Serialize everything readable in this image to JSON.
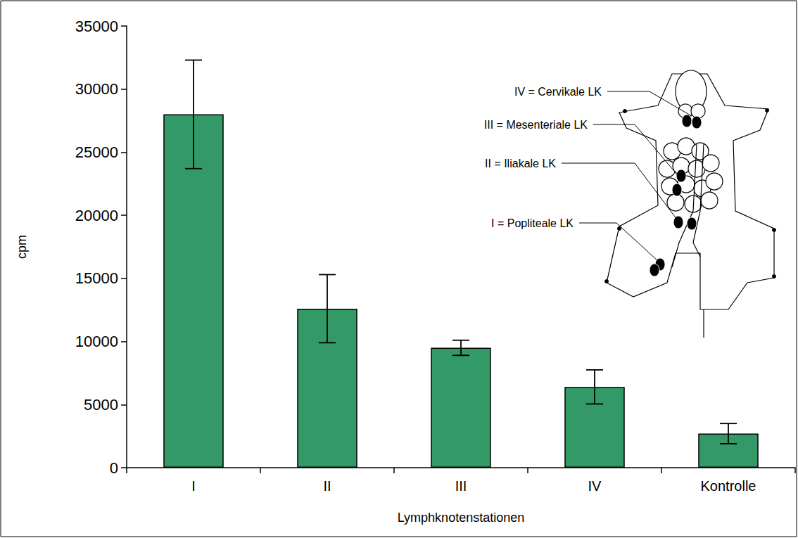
{
  "chart_data": {
    "type": "bar",
    "categories": [
      "I",
      "II",
      "III",
      "IV",
      "Kontrolle"
    ],
    "values": [
      28000,
      12600,
      9500,
      6400,
      2700
    ],
    "errors": [
      4300,
      2700,
      600,
      1350,
      800
    ],
    "color": "#339966",
    "xlabel": "Lymphknotenstationen",
    "ylabel": "cpm",
    "ylim": [
      0,
      35000
    ],
    "yticks": [
      0,
      5000,
      10000,
      15000,
      20000,
      25000,
      30000,
      35000
    ],
    "grid": false,
    "annotations": [
      "IV = Cervikale LK",
      "III = Mesenteriale LK",
      "II = Iliakale LK",
      "I = Popliteale LK"
    ]
  }
}
